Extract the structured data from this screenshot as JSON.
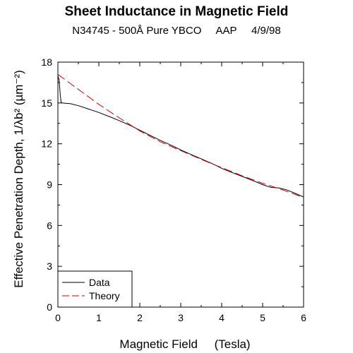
{
  "header": {
    "title": "Sheet Inductance in Magnetic Field",
    "subtitle": "N34745 - 500Å Pure YBCO     AAP     4/9/98"
  },
  "chart_data": {
    "type": "line",
    "title": "Sheet Inductance in Magnetic Field",
    "subtitle": "N34745 - 500Å Pure YBCO     AAP     4/9/98",
    "xlabel": "Magnetic Field     (Tesla)",
    "ylabel": "Effective Penetration Depth, 1/λb²   (µm⁻²)",
    "xlim": [
      0,
      6
    ],
    "ylim": [
      0,
      18
    ],
    "xticks": [
      0,
      1,
      2,
      3,
      4,
      5,
      6
    ],
    "yticks": [
      0,
      3,
      6,
      9,
      12,
      15,
      18
    ],
    "grid": false,
    "legend": {
      "placement": "bottom-left",
      "entries": [
        "Data",
        "Theory"
      ]
    },
    "series": [
      {
        "name": "Data",
        "color": "#000000",
        "style": "solid",
        "x": [
          0.0,
          0.03,
          0.06,
          0.08,
          0.1,
          0.2,
          0.3,
          0.5,
          0.7,
          1.0,
          1.3,
          1.5,
          1.8,
          2.0,
          2.3,
          2.5,
          2.8,
          3.0,
          3.3,
          3.5,
          3.8,
          4.0,
          4.2,
          4.5,
          4.8,
          5.0,
          5.2,
          5.4,
          5.6,
          5.8,
          6.0
        ],
        "y": [
          17.0,
          16.7,
          15.5,
          15.05,
          15.0,
          14.97,
          14.95,
          14.8,
          14.6,
          14.3,
          13.95,
          13.7,
          13.3,
          13.0,
          12.55,
          12.25,
          11.85,
          11.55,
          11.15,
          10.9,
          10.5,
          10.2,
          9.95,
          9.6,
          9.25,
          9.0,
          8.8,
          8.75,
          8.6,
          8.35,
          8.1
        ]
      },
      {
        "name": "Theory",
        "color": "#cc0000",
        "style": "dashed",
        "x": [
          0.0,
          0.5,
          1.0,
          1.5,
          2.0,
          2.5,
          3.0,
          3.5,
          4.0,
          4.5,
          5.0,
          5.5,
          6.0
        ],
        "y": [
          17.1,
          16.0,
          14.9,
          13.9,
          12.95,
          12.15,
          11.5,
          10.85,
          10.25,
          9.65,
          9.1,
          8.6,
          8.05
        ]
      }
    ]
  }
}
